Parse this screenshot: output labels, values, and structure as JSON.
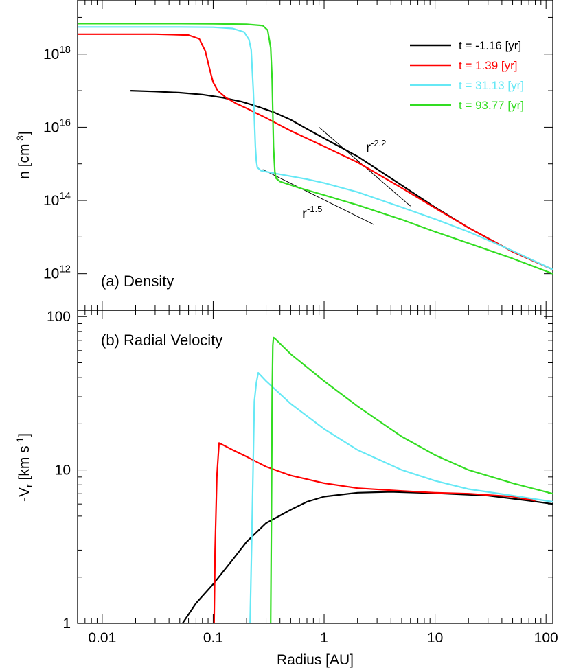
{
  "chart_data": [
    {
      "type": "line",
      "panel_label": "(a) Density",
      "ylabel_base": "n [cm",
      "ylabel_sup": "-3",
      "ylabel_end": "]",
      "xscale": "log",
      "yscale": "log",
      "xlim": [
        0.006,
        115
      ],
      "ylim": [
        100000000000.0,
        3e+19
      ],
      "ytick_labels": [
        {
          "value": 1e+18,
          "base": "10",
          "exp": "18"
        },
        {
          "value": 1e+16,
          "base": "10",
          "exp": "16"
        },
        {
          "value": 100000000000000.0,
          "base": "10",
          "exp": "14"
        },
        {
          "value": 1000000000000.0,
          "base": "10",
          "exp": "12"
        }
      ],
      "legend_position": "top-right",
      "series": [
        {
          "name": "t = -1.16 [yr]",
          "color": "#000000",
          "x": [
            0.018,
            0.03,
            0.05,
            0.08,
            0.12,
            0.18,
            0.25,
            0.35,
            0.5,
            0.7,
            1,
            2,
            5,
            10,
            20,
            50,
            115
          ],
          "y": [
            1e+17,
            9.5e+16,
            8.8e+16,
            7.8e+16,
            6.5e+16,
            5e+16,
            3.7e+16,
            2.6e+16,
            1.6e+16,
            9000000000000000.0,
            5000000000000000.0,
            1600000000000000.0,
            260000000000000.0,
            65000000000000.0,
            18000000000000.0,
            4000000000000.0,
            1300000000000.0
          ]
        },
        {
          "name": "t = 1.39 [yr]",
          "color": "#ff0000",
          "x": [
            0.006,
            0.03,
            0.06,
            0.075,
            0.085,
            0.095,
            0.1,
            0.11,
            0.13,
            0.16,
            0.2,
            0.3,
            0.5,
            1,
            2,
            5,
            10,
            20,
            50,
            115
          ],
          "y": [
            3.5e+18,
            3.5e+18,
            3.3e+18,
            2.6e+18,
            1.2e+18,
            3e+17,
            1.7e+17,
            1e+17,
            6.5e+16,
            4.5e+16,
            3.3e+16,
            1.8e+16,
            8000000000000000.0,
            3000000000000000.0,
            1100000000000000.0,
            220000000000000.0,
            62000000000000.0,
            18000000000000.0,
            4000000000000.0,
            1300000000000.0
          ]
        },
        {
          "name": "t = 31.13 [yr]",
          "color": "#66e8f5",
          "x": [
            0.006,
            0.05,
            0.1,
            0.15,
            0.19,
            0.21,
            0.22,
            0.23,
            0.24,
            0.245,
            0.25,
            0.27,
            0.4,
            0.7,
            1,
            2,
            5,
            10,
            20,
            50,
            115
          ],
          "y": [
            5.5e+18,
            5.5e+18,
            5.4e+18,
            5e+18,
            4e+18,
            2.5e+18,
            1.3e+18,
            1e+17,
            3000000000000000.0,
            1200000000000000.0,
            800000000000000.0,
            650000000000000.0,
            520000000000000.0,
            380000000000000.0,
            300000000000000.0,
            170000000000000.0,
            65000000000000.0,
            31000000000000.0,
            14000000000000.0,
            4200000000000.0,
            1300000000000.0
          ]
        },
        {
          "name": "t = 93.77 [yr]",
          "color": "#33dd22",
          "x": [
            0.006,
            0.05,
            0.1,
            0.2,
            0.28,
            0.31,
            0.33,
            0.34,
            0.35,
            0.36,
            0.37,
            0.4,
            0.6,
            1,
            2,
            5,
            10,
            20,
            50,
            115
          ],
          "y": [
            6.8e+18,
            6.8e+18,
            6.7e+18,
            6.5e+18,
            6e+18,
            4.5e+18,
            1.5e+18,
            2e+17,
            3000000000000000.0,
            600000000000000.0,
            400000000000000.0,
            330000000000000.0,
            220000000000000.0,
            140000000000000.0,
            75000000000000.0,
            30000000000000.0,
            14000000000000.0,
            6800000000000.0,
            2600000000000.0,
            1000000000000.0
          ]
        }
      ],
      "reference_lines": [
        {
          "label_base": "r",
          "label_exp": "-2.2",
          "x": [
            0.9,
            6
          ],
          "y": [
            1e+16,
            70000000000000.0
          ]
        },
        {
          "label_base": "r",
          "label_exp": "-1.5",
          "x": [
            0.28,
            2.8
          ],
          "y": [
            700000000000000.0,
            22000000000000.0
          ]
        }
      ]
    },
    {
      "type": "line",
      "panel_label": "(b) Radial Velocity",
      "ylabel_pre": "-V",
      "ylabel_sub": "r",
      "ylabel_mid": " [km s",
      "ylabel_sup": "-1",
      "ylabel_end": "]",
      "xlabel": "Radius [AU]",
      "xscale": "log",
      "yscale": "log",
      "xlim": [
        0.006,
        115
      ],
      "ylim": [
        1,
        110
      ],
      "ytick_labels": [
        {
          "value": 100,
          "label": "100"
        },
        {
          "value": 10,
          "label": "10"
        },
        {
          "value": 1,
          "label": "1"
        }
      ],
      "xtick_labels": [
        {
          "value": 0.01,
          "label": "0.01"
        },
        {
          "value": 0.1,
          "label": "0.1"
        },
        {
          "value": 1,
          "label": "1"
        },
        {
          "value": 10,
          "label": "10"
        },
        {
          "value": 100,
          "label": "100"
        }
      ],
      "series": [
        {
          "name": "t = -1.16 [yr]",
          "color": "#000000",
          "x": [
            0.053,
            0.07,
            0.1,
            0.15,
            0.2,
            0.3,
            0.5,
            0.7,
            1,
            2,
            4,
            10,
            30,
            70,
            115
          ],
          "y": [
            1.0,
            1.35,
            1.8,
            2.6,
            3.4,
            4.5,
            5.5,
            6.2,
            6.7,
            7.1,
            7.2,
            7.05,
            6.8,
            6.3,
            6.0
          ]
        },
        {
          "name": "t = 1.39 [yr]",
          "color": "#ff0000",
          "x": [
            0.102,
            0.104,
            0.108,
            0.113,
            0.15,
            0.2,
            0.3,
            0.5,
            1,
            2,
            5,
            10,
            20,
            50,
            80
          ],
          "y": [
            1.0,
            3.0,
            9.0,
            15.0,
            13.5,
            12.2,
            10.5,
            9.2,
            8.2,
            7.6,
            7.3,
            7.1,
            7.0,
            6.7,
            6.3
          ]
        },
        {
          "name": "t = 31.13 [yr]",
          "color": "#66e8f5",
          "x": [
            0.215,
            0.225,
            0.235,
            0.245,
            0.255,
            0.3,
            0.5,
            1,
            2,
            5,
            10,
            20,
            50,
            115
          ],
          "y": [
            1.0,
            5.0,
            28.0,
            37.0,
            43.0,
            38.0,
            27.0,
            18.5,
            13.5,
            10.0,
            8.5,
            7.5,
            6.8,
            6.2
          ]
        },
        {
          "name": "t = 93.77 [yr]",
          "color": "#33dd22",
          "x": [
            0.33,
            0.335,
            0.34,
            0.345,
            0.35,
            0.36,
            0.5,
            1,
            2,
            5,
            10,
            20,
            50,
            115
          ],
          "y": [
            1.0,
            5.0,
            30.0,
            65.0,
            73.0,
            72.0,
            57.0,
            38.0,
            26.0,
            16.5,
            12.5,
            10.0,
            8.2,
            7.0
          ]
        }
      ]
    }
  ]
}
